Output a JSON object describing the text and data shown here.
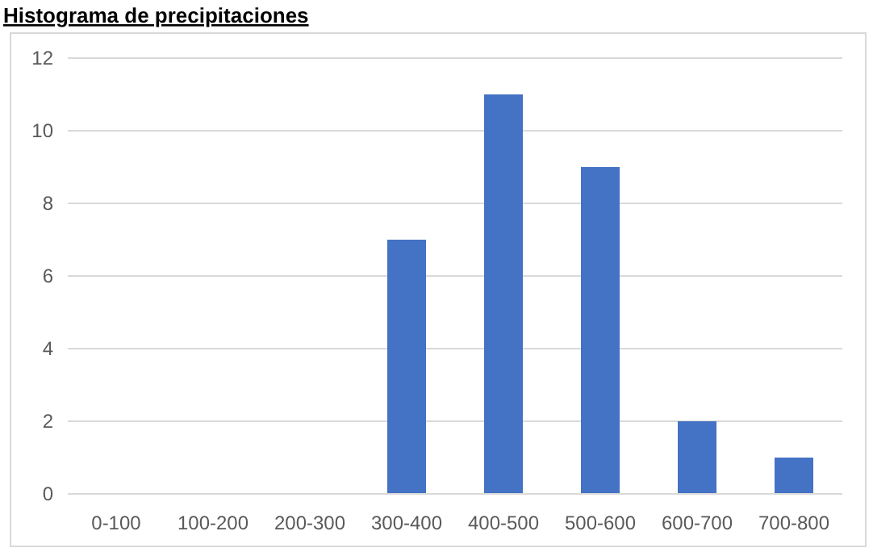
{
  "chart_data": {
    "type": "bar",
    "title": "Histograma de precipitaciones",
    "categories": [
      "0-100",
      "100-200",
      "200-300",
      "300-400",
      "400-500",
      "500-600",
      "600-700",
      "700-800"
    ],
    "values": [
      0,
      0,
      0,
      7,
      11,
      9,
      2,
      1
    ],
    "color": "#4472c4",
    "ylim": [
      0,
      12
    ],
    "yticks": [
      0,
      2,
      4,
      6,
      8,
      10,
      12
    ],
    "grid": "y"
  }
}
